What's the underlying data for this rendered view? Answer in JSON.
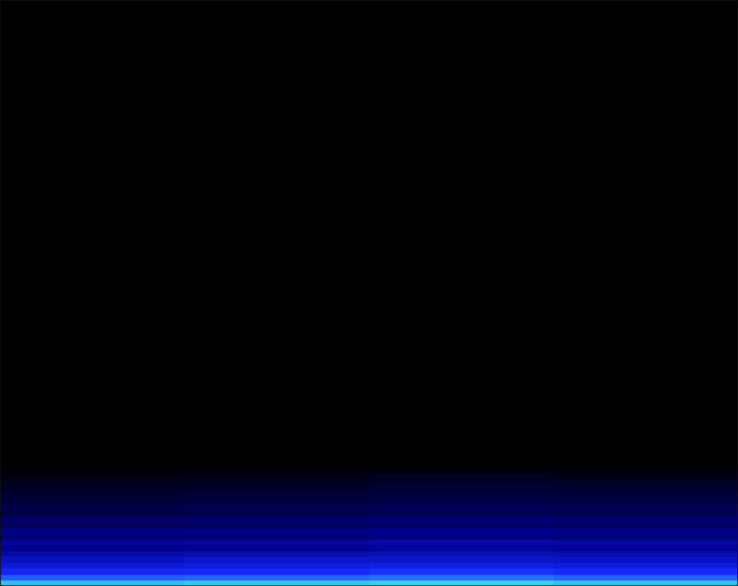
{
  "chart_data": {
    "type": "heatmap",
    "tick_labels": false,
    "xbins": [
      0,
      1,
      2,
      3,
      4
    ],
    "ybins": [
      0,
      1,
      2,
      3,
      4,
      5,
      6,
      7,
      8,
      9,
      10,
      11,
      12,
      13,
      14,
      15,
      16,
      17,
      18,
      19,
      20
    ],
    "xlim": [
      0,
      4
    ],
    "ylim": [
      0,
      100
    ],
    "zlim": [
      0,
      100
    ],
    "cells": [
      [
        88,
        90,
        92,
        89
      ],
      [
        70,
        72,
        74,
        71
      ],
      [
        58,
        60,
        62,
        60
      ],
      [
        50,
        52,
        54,
        51
      ],
      [
        44,
        46,
        47,
        45
      ],
      [
        38,
        40,
        42,
        40
      ],
      [
        30,
        31,
        33,
        32
      ],
      [
        34,
        35,
        37,
        36
      ],
      [
        24,
        25,
        27,
        26
      ],
      [
        28,
        29,
        31,
        29
      ],
      [
        19,
        20,
        22,
        21
      ],
      [
        22,
        23,
        25,
        24
      ],
      [
        14,
        15,
        17,
        16
      ],
      [
        16,
        17,
        19,
        18
      ],
      [
        11,
        12,
        14,
        13
      ],
      [
        12,
        13,
        15,
        14
      ],
      [
        8,
        9,
        11,
        10
      ],
      [
        7,
        8,
        10,
        9
      ],
      [
        4,
        5,
        7,
        6
      ],
      [
        2,
        3,
        4,
        3
      ]
    ]
  }
}
